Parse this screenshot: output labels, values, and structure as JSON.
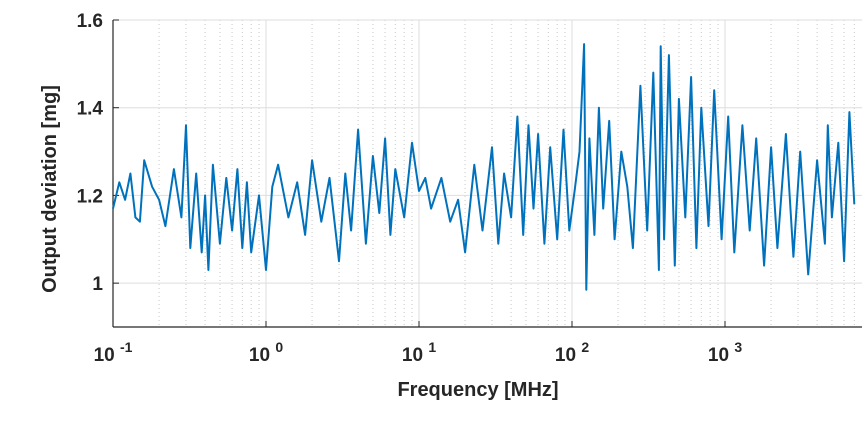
{
  "chart_data": {
    "type": "line",
    "xlabel": "Frequency [MHz]",
    "ylabel": "Output deviation [mg]",
    "x_scale": "log",
    "xlim": [
      0.1,
      7000
    ],
    "ylim": [
      0.9,
      1.6
    ],
    "x_ticks": [
      {
        "base": "10",
        "exp": "-1",
        "value": 0.1
      },
      {
        "base": "10",
        "exp": "0",
        "value": 1
      },
      {
        "base": "10",
        "exp": "1",
        "value": 10
      },
      {
        "base": "10",
        "exp": "2",
        "value": 100
      },
      {
        "base": "10",
        "exp": "3",
        "value": 1000
      }
    ],
    "y_ticks": [
      {
        "label": "1",
        "value": 1.0
      },
      {
        "label": "1.2",
        "value": 1.2
      },
      {
        "label": "1.4",
        "value": 1.4
      },
      {
        "label": "1.6",
        "value": 1.6
      }
    ],
    "grid": {
      "major": true,
      "minor_x": true
    },
    "line_color": "#0072BD",
    "series": [
      {
        "x": [
          0.1,
          0.11,
          0.12,
          0.13,
          0.14,
          0.15,
          0.16,
          0.18,
          0.2,
          0.22,
          0.25,
          0.28,
          0.3,
          0.32,
          0.35,
          0.38,
          0.4,
          0.42,
          0.45,
          0.5,
          0.55,
          0.6,
          0.65,
          0.7,
          0.75,
          0.8,
          0.9,
          1.0,
          1.1,
          1.2,
          1.4,
          1.6,
          1.8,
          2.0,
          2.3,
          2.6,
          3.0,
          3.3,
          3.6,
          4.0,
          4.5,
          5.0,
          5.5,
          6.0,
          6.5,
          7.0,
          8.0,
          9.0,
          10,
          11,
          12,
          14,
          16,
          18,
          20,
          23,
          26,
          30,
          33,
          36,
          40,
          44,
          48,
          52,
          56,
          60,
          66,
          72,
          80,
          88,
          96,
          104,
          112,
          120,
          124,
          130,
          140,
          150,
          160,
          175,
          190,
          210,
          230,
          250,
          280,
          310,
          340,
          370,
          380,
          400,
          430,
          470,
          500,
          550,
          600,
          650,
          700,
          780,
          850,
          950,
          1050,
          1150,
          1300,
          1450,
          1600,
          1800,
          2000,
          2200,
          2500,
          2800,
          3100,
          3500,
          4000,
          4500,
          4700,
          5000,
          5500,
          6000,
          6500,
          7000
        ],
        "y": [
          1.17,
          1.23,
          1.19,
          1.25,
          1.15,
          1.14,
          1.28,
          1.22,
          1.19,
          1.13,
          1.26,
          1.15,
          1.36,
          1.08,
          1.25,
          1.07,
          1.2,
          1.03,
          1.27,
          1.09,
          1.24,
          1.12,
          1.26,
          1.08,
          1.23,
          1.07,
          1.2,
          1.03,
          1.22,
          1.27,
          1.15,
          1.23,
          1.11,
          1.28,
          1.14,
          1.24,
          1.05,
          1.25,
          1.12,
          1.35,
          1.09,
          1.29,
          1.16,
          1.33,
          1.11,
          1.26,
          1.15,
          1.32,
          1.21,
          1.24,
          1.17,
          1.24,
          1.14,
          1.19,
          1.07,
          1.27,
          1.12,
          1.31,
          1.09,
          1.25,
          1.15,
          1.38,
          1.11,
          1.36,
          1.17,
          1.34,
          1.09,
          1.31,
          1.1,
          1.35,
          1.12,
          1.21,
          1.3,
          1.545,
          0.985,
          1.33,
          1.11,
          1.4,
          1.17,
          1.37,
          1.1,
          1.3,
          1.22,
          1.08,
          1.45,
          1.12,
          1.48,
          1.03,
          1.54,
          1.1,
          1.52,
          1.04,
          1.42,
          1.15,
          1.47,
          1.08,
          1.4,
          1.13,
          1.44,
          1.1,
          1.38,
          1.07,
          1.36,
          1.12,
          1.33,
          1.04,
          1.31,
          1.08,
          1.34,
          1.06,
          1.3,
          1.02,
          1.28,
          1.09,
          1.36,
          1.15,
          1.32,
          1.05,
          1.39,
          1.18
        ]
      }
    ]
  }
}
